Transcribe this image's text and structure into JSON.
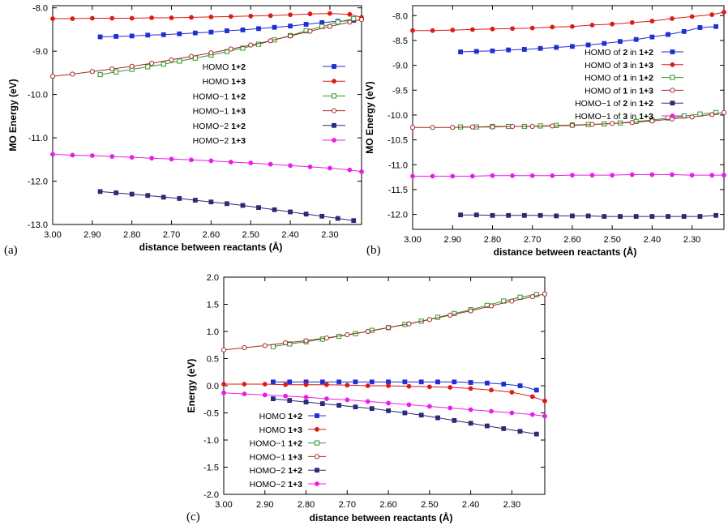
{
  "chart_data": [
    {
      "type": "line",
      "panel_label": "(a)",
      "xlabel": "distance between reactants (Å)",
      "ylabel": "MO Energy (eV)",
      "xlim": [
        3.0,
        2.22
      ],
      "ylim": [
        -13.0,
        -7.95
      ],
      "xticks": [
        "3.00",
        "2.90",
        "2.80",
        "2.70",
        "2.60",
        "2.50",
        "2.40",
        "2.30"
      ],
      "yticks": [
        "-8.0",
        "-9.0",
        "-10.0",
        "-11.0",
        "-12.0",
        "-13.0"
      ],
      "legend_position": "center-right",
      "series": [
        {
          "name": "HOMO 1+2",
          "label_plain": "HOMO ",
          "label_bold": "1+2",
          "color": "#1f2fd0",
          "marker": "square-filled",
          "x": [
            2.88,
            2.84,
            2.8,
            2.76,
            2.72,
            2.68,
            2.64,
            2.6,
            2.56,
            2.52,
            2.48,
            2.44,
            2.4,
            2.36,
            2.32,
            2.28,
            2.24
          ],
          "y": [
            -8.67,
            -8.66,
            -8.65,
            -8.63,
            -8.62,
            -8.6,
            -8.58,
            -8.56,
            -8.53,
            -8.51,
            -8.48,
            -8.45,
            -8.42,
            -8.38,
            -8.34,
            -8.31,
            -8.29
          ]
        },
        {
          "name": "HOMO 1+3",
          "label_plain": "HOMO ",
          "label_bold": "1+3",
          "color": "#dd1a1a",
          "marker": "circle-filled",
          "x": [
            3.0,
            2.95,
            2.9,
            2.85,
            2.8,
            2.75,
            2.7,
            2.65,
            2.6,
            2.55,
            2.5,
            2.45,
            2.4,
            2.35,
            2.3,
            2.25,
            2.22
          ],
          "y": [
            -8.25,
            -8.25,
            -8.24,
            -8.24,
            -8.24,
            -8.23,
            -8.23,
            -8.22,
            -8.21,
            -8.2,
            -8.19,
            -8.18,
            -8.16,
            -8.14,
            -8.13,
            -8.15,
            -8.22
          ]
        },
        {
          "name": "HOMO−1 1+2",
          "label_plain": "HOMO−1 ",
          "label_bold": "1+2",
          "color": "#2a9a2a",
          "marker": "square-open",
          "x": [
            2.88,
            2.84,
            2.8,
            2.76,
            2.72,
            2.68,
            2.64,
            2.6,
            2.56,
            2.52,
            2.48,
            2.44,
            2.4,
            2.36,
            2.32,
            2.28,
            2.24
          ],
          "y": [
            -9.54,
            -9.48,
            -9.42,
            -9.36,
            -9.3,
            -9.23,
            -9.16,
            -9.09,
            -9.01,
            -8.93,
            -8.84,
            -8.74,
            -8.64,
            -8.53,
            -8.43,
            -8.33,
            -8.25
          ]
        },
        {
          "name": "HOMO−1 1+3",
          "label_plain": "HOMO−1 ",
          "label_bold": "1+3",
          "color": "#a32a2a",
          "marker": "circle-open",
          "x": [
            3.0,
            2.95,
            2.9,
            2.85,
            2.8,
            2.75,
            2.7,
            2.65,
            2.6,
            2.55,
            2.5,
            2.45,
            2.4,
            2.35,
            2.3,
            2.25,
            2.22
          ],
          "y": [
            -9.58,
            -9.53,
            -9.47,
            -9.41,
            -9.35,
            -9.28,
            -9.2,
            -9.12,
            -9.04,
            -8.95,
            -8.86,
            -8.76,
            -8.65,
            -8.54,
            -8.43,
            -8.33,
            -8.27
          ]
        },
        {
          "name": "HOMO−2 1+2",
          "label_plain": "HOMO−2 ",
          "label_bold": "1+2",
          "color": "#2a2a78",
          "marker": "square-filled",
          "x": [
            2.88,
            2.84,
            2.8,
            2.76,
            2.72,
            2.68,
            2.64,
            2.6,
            2.56,
            2.52,
            2.48,
            2.44,
            2.4,
            2.36,
            2.32,
            2.28,
            2.24
          ],
          "y": [
            -12.24,
            -12.27,
            -12.3,
            -12.33,
            -12.37,
            -12.4,
            -12.44,
            -12.48,
            -12.52,
            -12.56,
            -12.61,
            -12.66,
            -12.71,
            -12.76,
            -12.81,
            -12.86,
            -12.91
          ]
        },
        {
          "name": "HOMO−2 1+3",
          "label_plain": "HOMO−2 ",
          "label_bold": "1+3",
          "color": "#e81ee8",
          "marker": "circle-filled",
          "x": [
            3.0,
            2.95,
            2.9,
            2.85,
            2.8,
            2.75,
            2.7,
            2.65,
            2.6,
            2.55,
            2.5,
            2.45,
            2.4,
            2.35,
            2.3,
            2.25,
            2.22
          ],
          "y": [
            -11.38,
            -11.4,
            -11.41,
            -11.43,
            -11.45,
            -11.47,
            -11.49,
            -11.51,
            -11.53,
            -11.56,
            -11.58,
            -11.61,
            -11.64,
            -11.67,
            -11.7,
            -11.74,
            -11.78
          ]
        }
      ]
    },
    {
      "type": "line",
      "panel_label": "(b)",
      "xlabel": "distance between reactants (Å)",
      "ylabel": "MO Energy (eV)",
      "xlim": [
        3.0,
        2.22
      ],
      "ylim": [
        -12.3,
        -7.8
      ],
      "xticks": [
        "3.00",
        "2.90",
        "2.80",
        "2.70",
        "2.60",
        "2.50",
        "2.40",
        "2.30"
      ],
      "yticks": [
        "-8.0",
        "-8.5",
        "-9.0",
        "-9.5",
        "-10.0",
        "-10.5",
        "-11.0",
        "-11.5",
        "-12.0"
      ],
      "legend_position": "top-right",
      "series": [
        {
          "name": "HOMO of 2 in 1+2",
          "parts": [
            [
              "HOMO of ",
              false
            ],
            [
              "2",
              true
            ],
            [
              " in ",
              false
            ],
            [
              "1+2",
              true
            ]
          ],
          "color": "#1f2fd0",
          "marker": "square-filled",
          "x": [
            2.88,
            2.84,
            2.8,
            2.76,
            2.72,
            2.68,
            2.64,
            2.6,
            2.56,
            2.52,
            2.48,
            2.44,
            2.4,
            2.36,
            2.32,
            2.28,
            2.24
          ],
          "y": [
            -8.73,
            -8.72,
            -8.71,
            -8.69,
            -8.68,
            -8.66,
            -8.64,
            -8.62,
            -8.59,
            -8.56,
            -8.52,
            -8.48,
            -8.43,
            -8.38,
            -8.32,
            -8.24,
            -8.22
          ]
        },
        {
          "name": "HOMO of 3 in 1+3",
          "parts": [
            [
              "HOMO of ",
              false
            ],
            [
              "3",
              true
            ],
            [
              " in ",
              false
            ],
            [
              "1+3",
              true
            ]
          ],
          "color": "#dd1a1a",
          "marker": "circle-filled",
          "x": [
            3.0,
            2.95,
            2.9,
            2.85,
            2.8,
            2.75,
            2.7,
            2.65,
            2.6,
            2.55,
            2.5,
            2.45,
            2.4,
            2.35,
            2.3,
            2.25,
            2.22
          ],
          "y": [
            -8.3,
            -8.3,
            -8.29,
            -8.28,
            -8.27,
            -8.26,
            -8.25,
            -8.23,
            -8.22,
            -8.19,
            -8.17,
            -8.14,
            -8.11,
            -8.06,
            -8.02,
            -7.98,
            -7.93
          ]
        },
        {
          "name": "HOMO of 1 in 1+2",
          "parts": [
            [
              "HOMO of ",
              false
            ],
            [
              "1",
              true
            ],
            [
              " in ",
              false
            ],
            [
              "1+2",
              true
            ]
          ],
          "color": "#2a9a2a",
          "marker": "square-open",
          "x": [
            2.88,
            2.84,
            2.8,
            2.76,
            2.72,
            2.68,
            2.64,
            2.6,
            2.56,
            2.52,
            2.48,
            2.44,
            2.4,
            2.36,
            2.32,
            2.28,
            2.24
          ],
          "y": [
            -10.24,
            -10.24,
            -10.23,
            -10.23,
            -10.23,
            -10.22,
            -10.21,
            -10.2,
            -10.19,
            -10.18,
            -10.16,
            -10.13,
            -10.1,
            -10.06,
            -10.02,
            -9.98,
            -9.95
          ]
        },
        {
          "name": "HOMO of 1 in 1+3",
          "parts": [
            [
              "HOMO of ",
              false
            ],
            [
              "1",
              true
            ],
            [
              " in ",
              false
            ],
            [
              "1+3",
              true
            ]
          ],
          "color": "#a32a2a",
          "marker": "circle-open",
          "x": [
            3.0,
            2.95,
            2.9,
            2.85,
            2.8,
            2.75,
            2.7,
            2.65,
            2.6,
            2.55,
            2.5,
            2.45,
            2.4,
            2.35,
            2.3,
            2.25,
            2.22
          ],
          "y": [
            -10.25,
            -10.25,
            -10.25,
            -10.24,
            -10.24,
            -10.23,
            -10.23,
            -10.22,
            -10.21,
            -10.19,
            -10.17,
            -10.15,
            -10.12,
            -10.08,
            -10.04,
            -9.99,
            -9.95
          ]
        },
        {
          "name": "HOMO−1 of 2 in 1+2",
          "parts": [
            [
              "HOMO−1 of ",
              false
            ],
            [
              "2",
              true
            ],
            [
              " in ",
              false
            ],
            [
              "1+2",
              true
            ]
          ],
          "color": "#2a2a78",
          "marker": "square-filled",
          "x": [
            2.88,
            2.84,
            2.8,
            2.76,
            2.72,
            2.68,
            2.64,
            2.6,
            2.56,
            2.52,
            2.48,
            2.44,
            2.4,
            2.36,
            2.32,
            2.28,
            2.24
          ],
          "y": [
            -12.01,
            -12.01,
            -12.02,
            -12.02,
            -12.02,
            -12.02,
            -12.03,
            -12.03,
            -12.03,
            -12.04,
            -12.04,
            -12.04,
            -12.04,
            -12.04,
            -12.04,
            -12.04,
            -12.02
          ]
        },
        {
          "name": "HOMO−1 of 3 in 1+3",
          "parts": [
            [
              "HOMO−1 of ",
              false
            ],
            [
              "3",
              true
            ],
            [
              " in ",
              false
            ],
            [
              "1+3",
              true
            ]
          ],
          "color": "#e81ee8",
          "marker": "circle-filled",
          "x": [
            3.0,
            2.95,
            2.9,
            2.85,
            2.8,
            2.75,
            2.7,
            2.65,
            2.6,
            2.55,
            2.5,
            2.45,
            2.4,
            2.35,
            2.3,
            2.25,
            2.22
          ],
          "y": [
            -11.23,
            -11.23,
            -11.23,
            -11.23,
            -11.22,
            -11.22,
            -11.22,
            -11.22,
            -11.21,
            -11.21,
            -11.21,
            -11.2,
            -11.2,
            -11.2,
            -11.21,
            -11.21,
            -11.21
          ]
        }
      ]
    },
    {
      "type": "line",
      "panel_label": "(c)",
      "xlabel": "distance between reactants (Å)",
      "ylabel": "Energy (eV)",
      "xlim": [
        3.0,
        2.22
      ],
      "ylim": [
        -2.0,
        2.0
      ],
      "xticks": [
        "3.00",
        "2.90",
        "2.80",
        "2.70",
        "2.60",
        "2.50",
        "2.40",
        "2.30"
      ],
      "yticks": [
        "2.0",
        "1.5",
        "1.0",
        "0.5",
        "0.0",
        "-0.5",
        "-1.0",
        "-1.5",
        "-2.0"
      ],
      "legend_position": "bottom-left",
      "series": [
        {
          "name": "HOMO 1+2",
          "label_plain": "HOMO ",
          "label_bold": "1+2",
          "color": "#1f2fd0",
          "marker": "square-filled",
          "x": [
            2.88,
            2.84,
            2.8,
            2.76,
            2.72,
            2.68,
            2.64,
            2.6,
            2.56,
            2.52,
            2.48,
            2.44,
            2.4,
            2.36,
            2.32,
            2.28,
            2.24
          ],
          "y": [
            0.07,
            0.07,
            0.07,
            0.07,
            0.07,
            0.07,
            0.07,
            0.07,
            0.07,
            0.07,
            0.07,
            0.07,
            0.06,
            0.05,
            0.03,
            0.0,
            -0.08
          ]
        },
        {
          "name": "HOMO 1+3",
          "label_plain": "HOMO ",
          "label_bold": "1+3",
          "color": "#dd1a1a",
          "marker": "circle-filled",
          "x": [
            3.0,
            2.95,
            2.9,
            2.85,
            2.8,
            2.75,
            2.7,
            2.65,
            2.6,
            2.55,
            2.5,
            2.45,
            2.4,
            2.35,
            2.3,
            2.25,
            2.22
          ],
          "y": [
            0.03,
            0.03,
            0.03,
            0.02,
            0.02,
            0.02,
            0.01,
            0.0,
            0.0,
            -0.01,
            -0.02,
            -0.03,
            -0.05,
            -0.08,
            -0.12,
            -0.2,
            -0.28
          ]
        },
        {
          "name": "HOMO−1 1+2",
          "label_plain": "HOMO−1 ",
          "label_bold": "1+2",
          "color": "#2a9a2a",
          "marker": "square-open",
          "x": [
            2.88,
            2.84,
            2.8,
            2.76,
            2.72,
            2.68,
            2.64,
            2.6,
            2.56,
            2.52,
            2.48,
            2.44,
            2.4,
            2.36,
            2.32,
            2.28,
            2.24
          ],
          "y": [
            0.72,
            0.77,
            0.81,
            0.86,
            0.91,
            0.96,
            1.02,
            1.07,
            1.13,
            1.19,
            1.26,
            1.33,
            1.4,
            1.48,
            1.56,
            1.63,
            1.68
          ]
        },
        {
          "name": "HOMO−1 1+3",
          "label_plain": "HOMO−1 ",
          "label_bold": "1+3",
          "color": "#a32a2a",
          "marker": "circle-open",
          "x": [
            3.0,
            2.95,
            2.9,
            2.85,
            2.8,
            2.75,
            2.7,
            2.65,
            2.6,
            2.55,
            2.5,
            2.45,
            2.4,
            2.35,
            2.3,
            2.25,
            2.22
          ],
          "y": [
            0.66,
            0.7,
            0.74,
            0.79,
            0.83,
            0.88,
            0.94,
            1.0,
            1.07,
            1.14,
            1.22,
            1.3,
            1.38,
            1.47,
            1.56,
            1.64,
            1.69
          ]
        },
        {
          "name": "HOMO−2 1+2",
          "label_plain": "HOMO−2 ",
          "label_bold": "1+2",
          "color": "#2a2a78",
          "marker": "square-filled",
          "x": [
            2.88,
            2.84,
            2.8,
            2.76,
            2.72,
            2.68,
            2.64,
            2.6,
            2.56,
            2.52,
            2.48,
            2.44,
            2.4,
            2.36,
            2.32,
            2.28,
            2.24
          ],
          "y": [
            -0.24,
            -0.27,
            -0.3,
            -0.33,
            -0.36,
            -0.39,
            -0.42,
            -0.46,
            -0.5,
            -0.54,
            -0.59,
            -0.64,
            -0.69,
            -0.74,
            -0.79,
            -0.84,
            -0.89
          ]
        },
        {
          "name": "HOMO−2 1+3",
          "label_plain": "HOMO−2 ",
          "label_bold": "1+3",
          "color": "#e81ee8",
          "marker": "circle-filled",
          "x": [
            3.0,
            2.95,
            2.9,
            2.85,
            2.8,
            2.75,
            2.7,
            2.65,
            2.6,
            2.55,
            2.5,
            2.45,
            2.4,
            2.35,
            2.3,
            2.25,
            2.22
          ],
          "y": [
            -0.13,
            -0.15,
            -0.17,
            -0.19,
            -0.21,
            -0.24,
            -0.26,
            -0.29,
            -0.32,
            -0.35,
            -0.38,
            -0.41,
            -0.44,
            -0.47,
            -0.5,
            -0.53,
            -0.56
          ]
        }
      ]
    }
  ]
}
